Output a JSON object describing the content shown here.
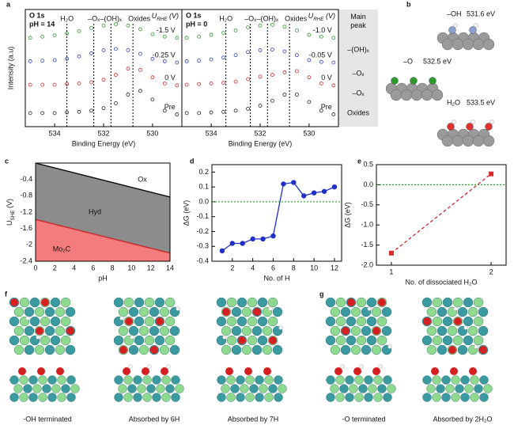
{
  "chart_data": [
    {
      "type": "line",
      "title": "O 1s",
      "subtitle": "pH = 14",
      "legend_title": [
        "U",
        "RHE",
        " (V)"
      ],
      "xlabel": "Binding Energy (eV)",
      "ylabel": "Intensity (a.u)",
      "x": [
        535,
        534.5,
        534,
        533.5,
        533,
        532.5,
        532,
        531.5,
        531,
        530.5,
        530,
        529.5,
        529
      ],
      "xlim": [
        535.2,
        528.8
      ],
      "xticks": [
        534,
        532,
        530
      ],
      "ylim": [
        0,
        9.5
      ],
      "marker": "open-circle",
      "linestyle": "none",
      "series": [
        {
          "name": "-1.5 V",
          "color": "#2e9a2e",
          "values": [
            7.2,
            7.3,
            7.4,
            7.55,
            7.75,
            8.0,
            8.2,
            8.3,
            8.2,
            7.9,
            7.5,
            7.3,
            7.2
          ]
        },
        {
          "name": "-0.25 V",
          "color": "#2b3fc4",
          "values": [
            5.3,
            5.35,
            5.4,
            5.5,
            5.7,
            5.95,
            6.2,
            6.3,
            6.2,
            5.9,
            5.5,
            5.3,
            5.2
          ]
        },
        {
          "name": "0 V",
          "color": "#d42a2a",
          "values": [
            3.4,
            3.4,
            3.4,
            3.45,
            3.5,
            3.6,
            3.8,
            4.2,
            4.7,
            4.6,
            4.0,
            3.5,
            3.35
          ]
        },
        {
          "name": "Pre",
          "color": "#222222",
          "values": [
            1.1,
            1.1,
            1.1,
            1.15,
            1.2,
            1.3,
            1.5,
            1.9,
            2.6,
            2.9,
            2.2,
            1.3,
            1.0
          ]
        }
      ],
      "peak_lines": [
        {
          "x": 533.5,
          "label": "H₂O"
        },
        {
          "x": 532.4,
          "label": "–Oₓ"
        },
        {
          "x": 531.7,
          "label": "–(OH)ₓ"
        },
        {
          "x": 530.8,
          "label": "Oxides"
        }
      ]
    },
    {
      "type": "line",
      "title": "O 1s",
      "subtitle": "pH = 0",
      "legend_title": [
        "U",
        "RHE",
        " (V)"
      ],
      "xlabel": "Binding Energy (eV)",
      "x": [
        535,
        534.5,
        534,
        533.5,
        533,
        532.5,
        532,
        531.5,
        531,
        530.5,
        530,
        529.5,
        529
      ],
      "xlim": [
        535.2,
        528.8
      ],
      "xticks": [
        534,
        532,
        530
      ],
      "ylim": [
        0,
        9.5
      ],
      "marker": "open-circle",
      "linestyle": "none",
      "series": [
        {
          "name": "-1.0 V",
          "color": "#2e9a2e",
          "values": [
            7.2,
            7.3,
            7.45,
            7.6,
            7.8,
            8.05,
            8.2,
            8.25,
            8.1,
            7.8,
            7.45,
            7.3,
            7.2
          ]
        },
        {
          "name": "-0.05 V",
          "color": "#2b3fc4",
          "values": [
            5.3,
            5.35,
            5.45,
            5.6,
            5.8,
            6.05,
            6.2,
            6.25,
            6.1,
            5.8,
            5.4,
            5.25,
            5.2
          ]
        },
        {
          "name": "0 V",
          "color": "#d42a2a",
          "values": [
            3.4,
            3.45,
            3.5,
            3.55,
            3.65,
            3.85,
            4.05,
            4.2,
            4.4,
            4.5,
            4.0,
            3.5,
            3.35
          ]
        },
        {
          "name": "Pre",
          "color": "#222222",
          "values": [
            1.1,
            1.1,
            1.15,
            1.2,
            1.3,
            1.45,
            1.7,
            2.1,
            2.6,
            2.6,
            2.0,
            1.3,
            1.0
          ]
        }
      ],
      "peak_lines": [
        {
          "x": 533.4,
          "label": "H₂O"
        },
        {
          "x": 532.4,
          "label": "–Oₓ"
        },
        {
          "x": 531.7,
          "label": "–(OH)ₓ"
        },
        {
          "x": 530.8,
          "label": "Oxides"
        }
      ]
    },
    {
      "type": "area",
      "xlabel": "pH",
      "ylabel": [
        "U",
        "SHE",
        " (V)"
      ],
      "xlim": [
        0,
        14
      ],
      "xticks": [
        0,
        2,
        4,
        6,
        8,
        10,
        12,
        14
      ],
      "ylim": [
        -2.4,
        0
      ],
      "yticks": [
        -0.4,
        -0.8,
        -1.2,
        -1.6,
        -2.0,
        -2.4
      ],
      "boundaries": [
        {
          "x": [
            0,
            14
          ],
          "values": [
            0,
            -0.83
          ],
          "color": "#000000"
        },
        {
          "x": [
            0,
            14
          ],
          "values": [
            -1.38,
            -2.2
          ],
          "color": "#c81e1e"
        }
      ],
      "regions": [
        {
          "label": "Ox",
          "color": "#ffffff"
        },
        {
          "label": "Hyd",
          "color": "#8c8c8c"
        },
        {
          "label": "Mo₂C",
          "color": "#f47c7c"
        }
      ]
    },
    {
      "type": "line",
      "xlabel": "No. of H",
      "ylabel": "ΔG (eV)",
      "x": [
        1,
        2,
        3,
        4,
        5,
        6,
        7,
        8,
        9,
        10,
        11,
        12
      ],
      "values": [
        -0.33,
        -0.28,
        -0.28,
        -0.25,
        -0.25,
        -0.23,
        0.12,
        0.13,
        0.04,
        0.06,
        0.07,
        0.1
      ],
      "color": "#1f2fc8",
      "marker": "circle",
      "linestyle": "solid",
      "xlim": [
        0,
        12.7
      ],
      "xticks": [
        2,
        4,
        6,
        8,
        10,
        12
      ],
      "ylim": [
        -0.4,
        0.25
      ],
      "yticks": [
        -0.4,
        -0.3,
        -0.2,
        -0.1,
        {
          "value": 0,
          "label": "0.0"
        },
        0.1,
        0.2
      ],
      "reference_line": {
        "value": 0,
        "color": "#22aa22"
      }
    },
    {
      "type": "line",
      "xlabel": "No. of dissociated H₂O",
      "ylabel": "ΔG (eV)",
      "x": [
        1,
        2
      ],
      "values": [
        -1.7,
        0.27
      ],
      "color": "#d42a2a",
      "marker": "square",
      "linestyle": "dashed",
      "xlim": [
        0.85,
        2.15
      ],
      "xticks": [
        1,
        2
      ],
      "ylim": [
        -2.0,
        0.5
      ],
      "yticks": [
        {
          "value": -2,
          "label": "-2.0"
        },
        -1.5,
        {
          "value": -1,
          "label": "-1.0"
        },
        -0.5,
        {
          "value": 0,
          "label": "0.0"
        },
        0.5
      ],
      "reference_line": {
        "value": 0,
        "color": "#22aa22"
      }
    }
  ],
  "panel_labels": [
    "a",
    "b",
    "c",
    "d",
    "e",
    "f",
    "g"
  ],
  "peak_column": {
    "header": [
      "Main",
      "peak"
    ],
    "labels": [
      "–(OH)ₓ",
      "–Oₓ",
      "–Oₓ",
      "Oxides"
    ]
  },
  "panel_b": {
    "labels": [
      [
        "–OH",
        "531.6 eV"
      ],
      [
        "–O",
        "532.5 eV"
      ],
      [
        "H₂O",
        "533.5 eV"
      ]
    ]
  },
  "panel_f": {
    "captions": [
      "-OH terminated",
      "Absorbed by 6H",
      "Absorbed by 7H"
    ]
  },
  "panel_g": {
    "captions": [
      "-O terminated",
      "Absorbed by 2H₂O"
    ]
  }
}
